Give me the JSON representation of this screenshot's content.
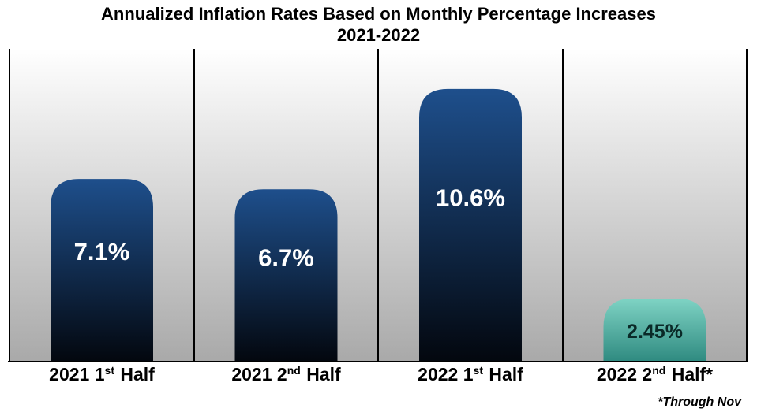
{
  "chart_data": {
    "type": "bar",
    "title_line1": "Annualized Inflation Rates Based on Monthly Percentage Increases",
    "title_line2": "2021-2022",
    "categories": [
      {
        "main": "2021 1",
        "sup": "st",
        "rest": " Half"
      },
      {
        "main": "2021 2",
        "sup": "nd",
        "rest": " Half"
      },
      {
        "main": "2022 1",
        "sup": "st",
        "rest": " Half"
      },
      {
        "main": "2022 2",
        "sup": "nd",
        "rest": " Half*"
      }
    ],
    "values": [
      7.1,
      6.7,
      10.6,
      2.45
    ],
    "data_labels": [
      "7.1%",
      "6.7%",
      "10.6%",
      "2.45%"
    ],
    "bar_colors": [
      "#1e4f8c",
      "#1e4f8c",
      "#1e4f8c",
      "#5ab8a8"
    ],
    "ylim": [
      0,
      12
    ],
    "grid": false,
    "footnote": "*Through Nov"
  }
}
